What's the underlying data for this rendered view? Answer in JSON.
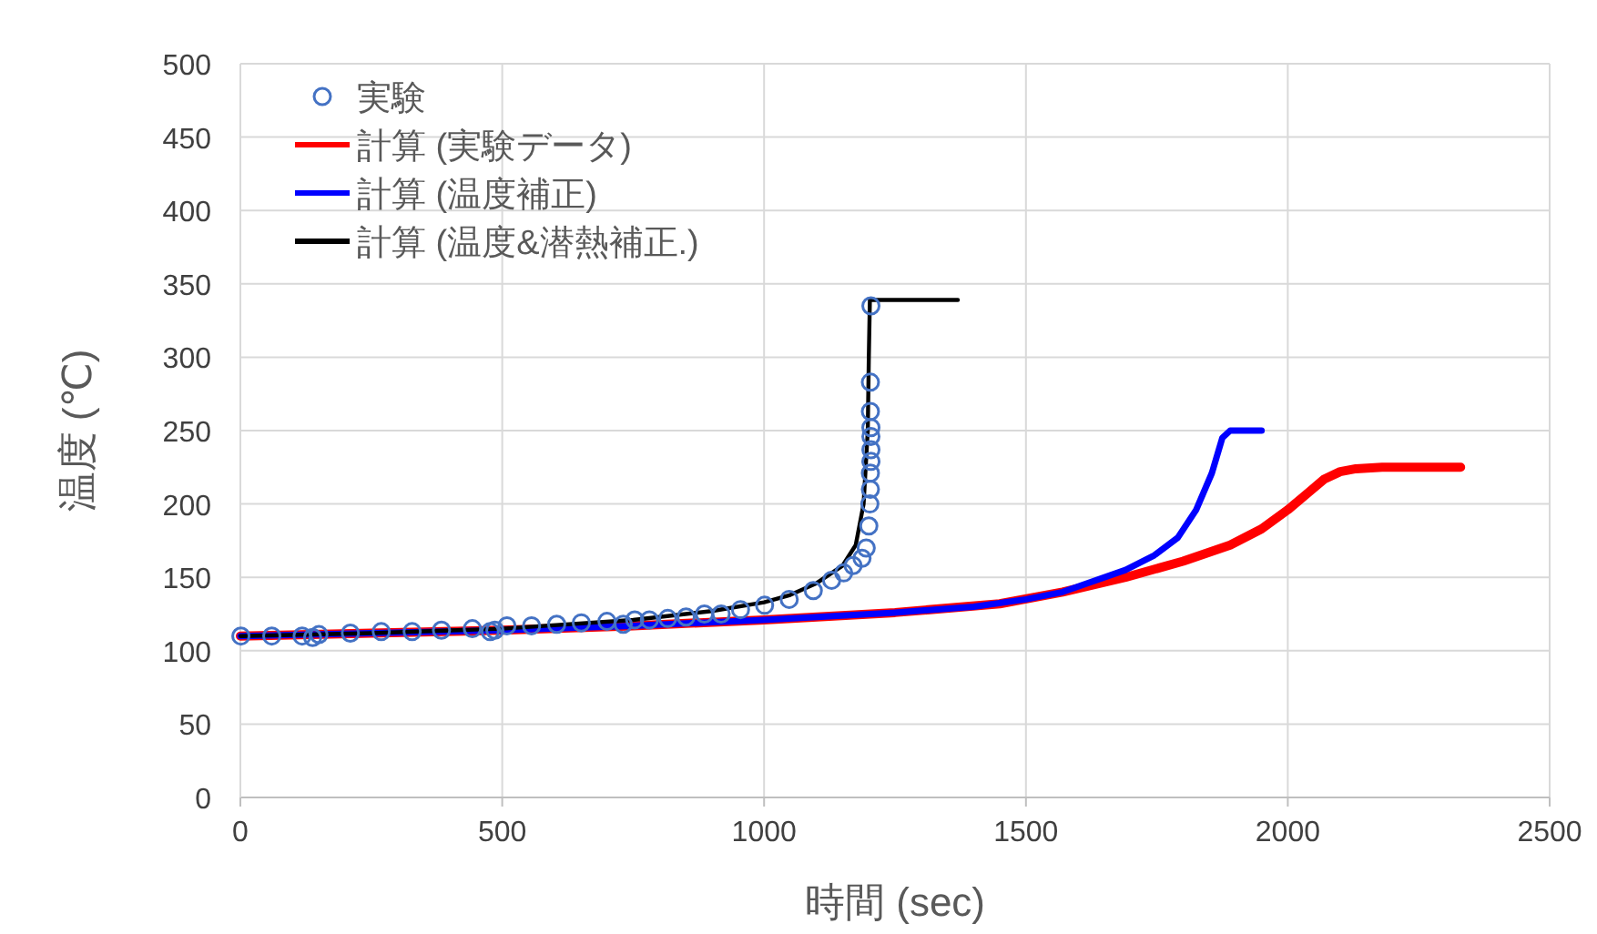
{
  "chart_data": {
    "type": "line",
    "xlabel": "時間 (sec)",
    "ylabel": "温度 (℃)",
    "xlim": [
      0,
      2500
    ],
    "ylim": [
      0,
      500
    ],
    "xticks": [
      0,
      500,
      1000,
      1500,
      2000,
      2500
    ],
    "yticks": [
      0,
      50,
      100,
      150,
      200,
      250,
      300,
      350,
      400,
      450,
      500
    ],
    "grid": true,
    "legend": "top left",
    "series": [
      {
        "name": "実験",
        "type": "scatter",
        "marker": "circle",
        "color": "#4472c4",
        "x": [
          1,
          60,
          118,
          138,
          150,
          210,
          269,
          328,
          384,
          443,
          477,
          486,
          509,
          556,
          604,
          651,
          700,
          731,
          753,
          781,
          816,
          851,
          886,
          918,
          955,
          1001,
          1048,
          1094,
          1129,
          1152,
          1170,
          1187,
          1195,
          1200,
          1202,
          1203,
          1203,
          1204,
          1204,
          1204,
          1204,
          1203,
          1203,
          1204
        ],
        "values": [
          110,
          110,
          110,
          109,
          111,
          112,
          113,
          113,
          114,
          115,
          113,
          114,
          117,
          117,
          118,
          119,
          120,
          118,
          121,
          121,
          122,
          123,
          125,
          125,
          128,
          131,
          135,
          141,
          148,
          153,
          158,
          163,
          170,
          185,
          200,
          210,
          221,
          229,
          237,
          246,
          252,
          263,
          283,
          335
        ]
      },
      {
        "name": "計算 (実験データ)",
        "type": "line",
        "color": "#ff0000",
        "x": [
          0,
          250,
          500,
          750,
          1000,
          1250,
          1450,
          1570,
          1690,
          1800,
          1890,
          1950,
          2000,
          2040,
          2070,
          2100,
          2130,
          2180,
          2330
        ],
        "values": [
          110,
          112,
          114,
          117,
          121,
          126,
          132,
          140,
          150,
          161,
          172,
          183,
          196,
          208,
          217,
          222,
          224,
          225,
          225
        ]
      },
      {
        "name": "計算 (温度補正)",
        "type": "line",
        "color": "#0000ff",
        "x": [
          0,
          250,
          500,
          750,
          1000,
          1250,
          1400,
          1500,
          1570,
          1690,
          1745,
          1790,
          1825,
          1855,
          1875,
          1890,
          1950
        ],
        "values": [
          110,
          112,
          114,
          117,
          121,
          126,
          130,
          135,
          140,
          155,
          165,
          177,
          196,
          221,
          245,
          250,
          250
        ]
      },
      {
        "name": "計算 (温度&潜熱補正.)",
        "type": "line",
        "color": "#000000",
        "x": [
          0,
          250,
          500,
          750,
          900,
          1000,
          1050,
          1100,
          1150,
          1175,
          1190,
          1198,
          1200,
          1202,
          1370
        ],
        "values": [
          110,
          112,
          115,
          121,
          127,
          133,
          138,
          146,
          158,
          172,
          200,
          250,
          300,
          339,
          339
        ]
      }
    ]
  }
}
